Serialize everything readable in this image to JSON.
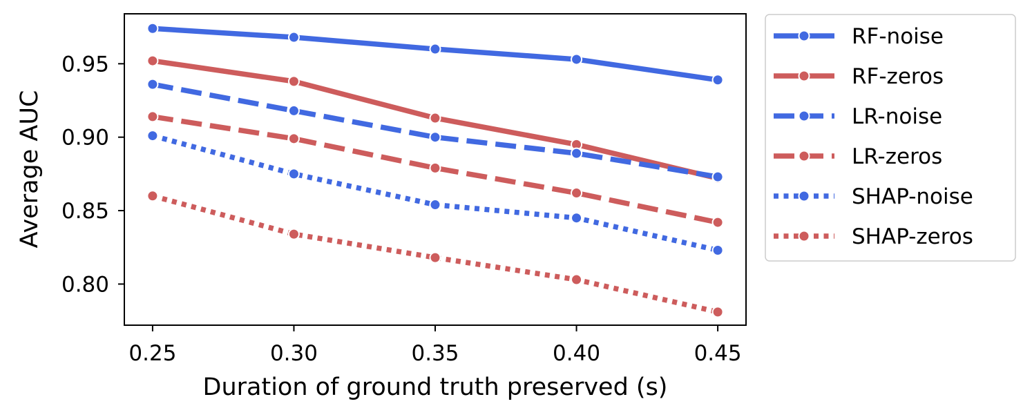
{
  "chart_data": {
    "type": "line",
    "title": "",
    "xlabel": "Duration of ground truth preserved (s)",
    "ylabel": "Average AUC",
    "x": [
      0.25,
      0.3,
      0.35,
      0.4,
      0.45
    ],
    "x_tick_labels": [
      "0.25",
      "0.30",
      "0.35",
      "0.40",
      "0.45"
    ],
    "y_ticks": [
      0.8,
      0.85,
      0.9,
      0.95
    ],
    "y_tick_labels": [
      "0.80",
      "0.85",
      "0.90",
      "0.95"
    ],
    "xlim": [
      0.24,
      0.46
    ],
    "ylim": [
      0.772,
      0.984
    ],
    "grid": false,
    "legend_position": "outside-right-top",
    "series": [
      {
        "name": "RF-noise",
        "values": [
          0.974,
          0.968,
          0.96,
          0.953,
          0.939
        ],
        "color": "#4169e1",
        "style": "solid"
      },
      {
        "name": "RF-zeros",
        "values": [
          0.952,
          0.938,
          0.913,
          0.895,
          0.872
        ],
        "color": "#cd5c5c",
        "style": "solid"
      },
      {
        "name": "LR-noise",
        "values": [
          0.936,
          0.918,
          0.9,
          0.889,
          0.873
        ],
        "color": "#4169e1",
        "style": "dashed"
      },
      {
        "name": "LR-zeros",
        "values": [
          0.914,
          0.899,
          0.879,
          0.862,
          0.842
        ],
        "color": "#cd5c5c",
        "style": "dashed"
      },
      {
        "name": "SHAP-noise",
        "values": [
          0.901,
          0.875,
          0.854,
          0.845,
          0.823
        ],
        "color": "#4169e1",
        "style": "dotted"
      },
      {
        "name": "SHAP-zeros",
        "values": [
          0.86,
          0.834,
          0.818,
          0.803,
          0.781
        ],
        "color": "#cd5c5c",
        "style": "dotted"
      }
    ]
  }
}
